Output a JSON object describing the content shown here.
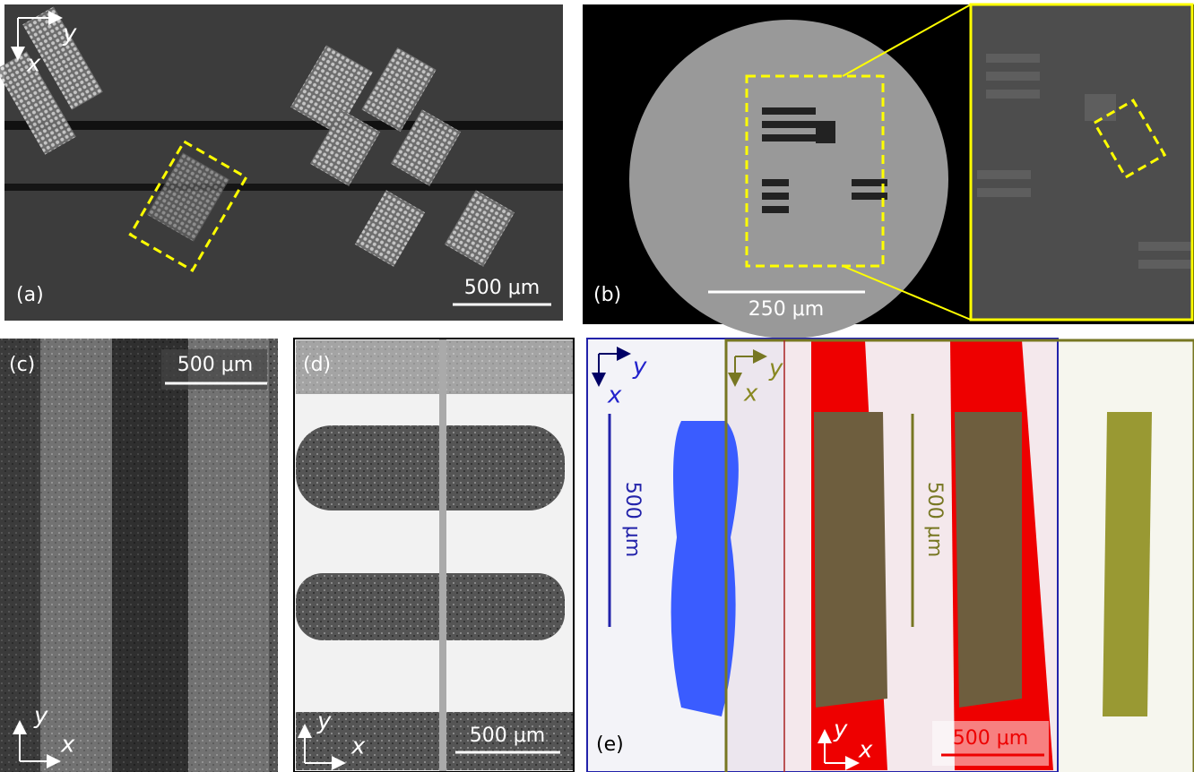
{
  "panels": [
    {
      "label": "(a)",
      "scale_bar": "500 μm",
      "axis_x": "x",
      "axis_y": "y"
    },
    {
      "label": "(b)",
      "scale_bar": "250 μm"
    },
    {
      "label": "(c)",
      "scale_bar": "500 μm",
      "axis_x": "x",
      "axis_y": "y"
    },
    {
      "label": "(d)",
      "scale_bar": "500 μm",
      "axis_x": "x",
      "axis_y": "y"
    },
    {
      "label": "(e)",
      "scale_bar": "500 μm",
      "blue_scale_bar": "500 μm",
      "olive_scale_bar": "500 μm",
      "blue_axis_x": "x",
      "blue_axis_y": "y",
      "olive_axis_x": "x",
      "olive_axis_y": "y",
      "axis_x": "x",
      "axis_y": "y"
    }
  ]
}
